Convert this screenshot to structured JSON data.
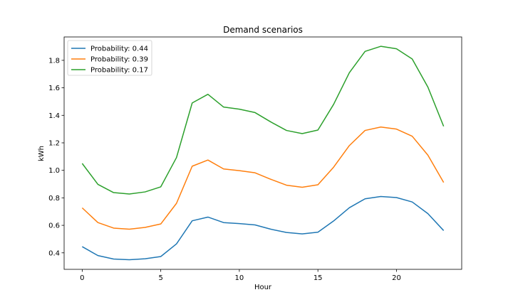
{
  "chart_data": {
    "type": "line",
    "title": "Demand scenarios",
    "xlabel": "Hour",
    "ylabel": "kWh",
    "xlim": [
      -1.15,
      24.15
    ],
    "ylim": [
      0.28,
      1.97
    ],
    "xticks": [
      0,
      5,
      10,
      15,
      20
    ],
    "yticks": [
      0.4,
      0.6,
      0.8,
      1.0,
      1.2,
      1.4,
      1.6,
      1.8
    ],
    "ytick_labels": [
      "0.4",
      "0.6",
      "0.8",
      "1.0",
      "1.2",
      "1.4",
      "1.6",
      "1.8"
    ],
    "grid": false,
    "legend_position": "top-left",
    "x": [
      0,
      1,
      2,
      3,
      4,
      5,
      6,
      7,
      8,
      9,
      10,
      11,
      12,
      13,
      14,
      15,
      16,
      17,
      18,
      19,
      20,
      21,
      22,
      23
    ],
    "series": [
      {
        "name": "Probability: 0.44",
        "color": "#1f77b4",
        "values": [
          0.445,
          0.38,
          0.355,
          0.35,
          0.357,
          0.373,
          0.465,
          0.633,
          0.66,
          0.62,
          0.613,
          0.603,
          0.572,
          0.548,
          0.538,
          0.55,
          0.632,
          0.728,
          0.793,
          0.81,
          0.802,
          0.77,
          0.685,
          0.562
        ]
      },
      {
        "name": "Probability: 0.39",
        "color": "#ff7f0e",
        "values": [
          0.727,
          0.62,
          0.58,
          0.572,
          0.585,
          0.61,
          0.76,
          1.03,
          1.075,
          1.01,
          0.998,
          0.982,
          0.935,
          0.892,
          0.877,
          0.895,
          1.023,
          1.18,
          1.29,
          1.315,
          1.3,
          1.248,
          1.11,
          0.912
        ]
      },
      {
        "name": "Probability: 0.17",
        "color": "#2ca02c",
        "values": [
          1.05,
          0.898,
          0.838,
          0.828,
          0.843,
          0.88,
          1.093,
          1.49,
          1.553,
          1.46,
          1.445,
          1.42,
          1.352,
          1.29,
          1.267,
          1.293,
          1.48,
          1.71,
          1.865,
          1.902,
          1.884,
          1.81,
          1.605,
          1.32
        ]
      }
    ]
  }
}
